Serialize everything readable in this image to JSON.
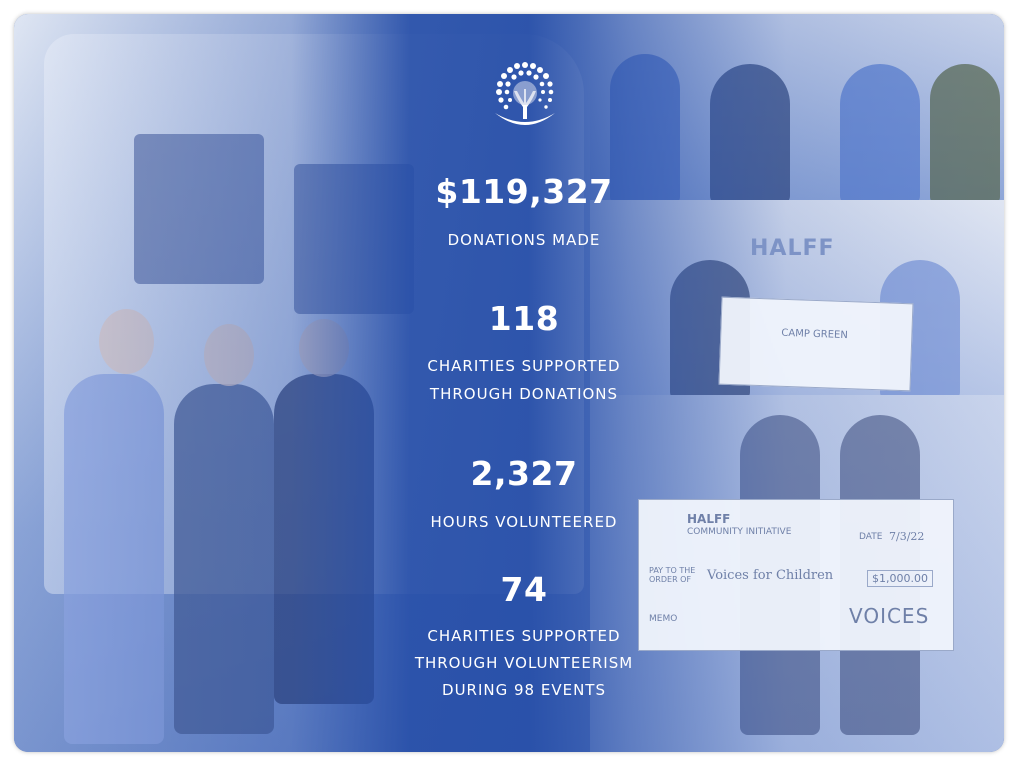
{
  "stats": [
    {
      "value": "$119,327",
      "label_lines": [
        "DONATIONS MADE"
      ]
    },
    {
      "value": "118",
      "label_lines": [
        "CHARITIES SUPPORTED",
        "THROUGH DONATIONS"
      ]
    },
    {
      "value": "2,327",
      "label_lines": [
        "HOURS VOLUNTEERED"
      ]
    },
    {
      "value": "74",
      "label_lines": [
        "CHARITIES SUPPORTED",
        "THROUGH VOLUNTEERISM",
        "DURING 98 EVENTS"
      ]
    }
  ],
  "photos": {
    "middle_right": {
      "sign": "HALFF",
      "check_payee": "CAMP GREEN"
    },
    "bottom_right": {
      "check_org": "HALFF",
      "check_org_sub": "COMMUNITY INITIATIVE",
      "check_date_label": "DATE",
      "check_date": "7/3/22",
      "check_pay_label": "PAY TO THE ORDER OF",
      "check_payee": "Voices for Children",
      "check_amount": "$1,000.00",
      "check_memo": "MEMO",
      "sponsor_logo": "VOICES"
    }
  },
  "colors": {
    "overlay_blue": "#264ea8",
    "text": "#ffffff"
  }
}
